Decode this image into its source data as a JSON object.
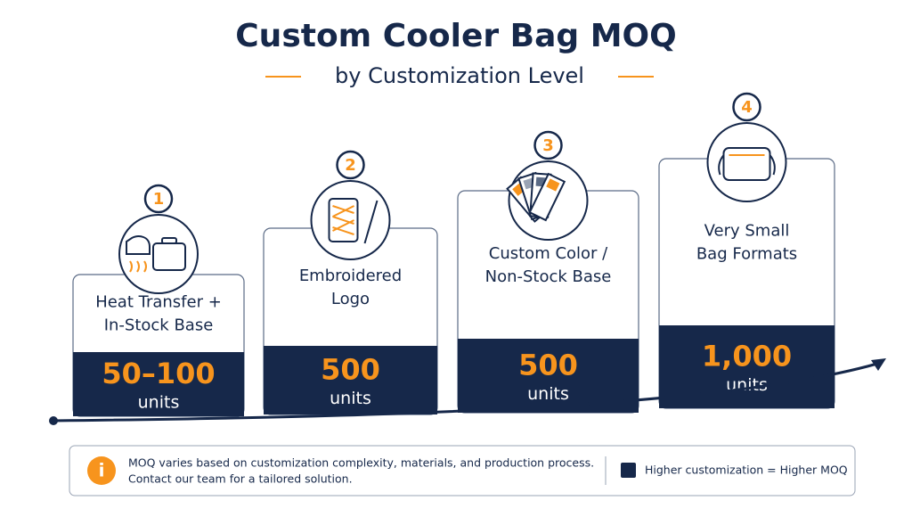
{
  "header": {
    "title": "Custom Cooler Bag MOQ",
    "subtitle": "by Customization Level"
  },
  "steps": [
    {
      "number": "1",
      "label": [
        "Heat Transfer +",
        "In-Stock Base"
      ],
      "value": "50–100",
      "unit": "units"
    },
    {
      "number": "2",
      "label": [
        "Embroidered",
        "Logo"
      ],
      "value": "500",
      "unit": "units"
    },
    {
      "number": "3",
      "label": [
        "Custom Color /",
        "Non-Stock Base"
      ],
      "value": "500",
      "unit": "units"
    },
    {
      "number": "4",
      "label": [
        "Very Small",
        "Bag Formats"
      ],
      "value": "1,000",
      "unit": "units"
    }
  ],
  "note": {
    "icon": "i",
    "lines": [
      "MOQ varies based on customization complexity, materials, and production process.",
      "Contact our team for a tailored solution."
    ]
  },
  "legend": {
    "label": "Higher customization = Higher MOQ"
  }
}
